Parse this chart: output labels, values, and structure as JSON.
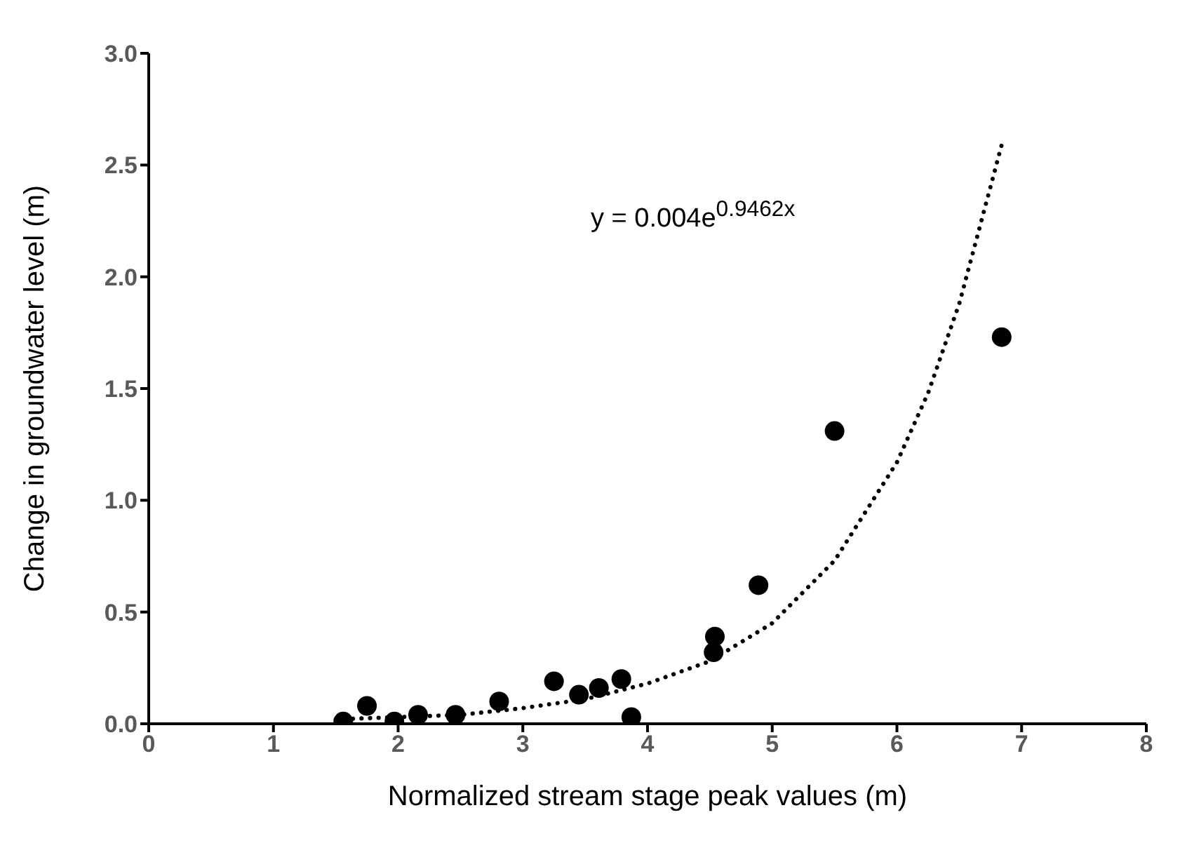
{
  "chart_data": {
    "type": "scatter",
    "xlabel": "Normalized stream stage peak values (m)",
    "ylabel": "Change in groundwater level (m)",
    "xlim": [
      0,
      8
    ],
    "xticks": [
      0,
      1,
      2,
      3,
      4,
      5,
      6,
      7,
      8
    ],
    "ylim": [
      0,
      3
    ],
    "yticks": [
      {
        "value": 0,
        "label": "0.0"
      },
      {
        "value": 0.5,
        "label": "0.5"
      },
      {
        "value": 1,
        "label": "1.0"
      },
      {
        "value": 1.5,
        "label": "1.5"
      },
      {
        "value": 2,
        "label": "2.0"
      },
      {
        "value": 2.5,
        "label": "2.5"
      },
      {
        "value": 3,
        "label": "3.0"
      }
    ],
    "annotations": [
      "y = 0.004e$^{0.9462x}$"
    ],
    "series": [
      {
        "color": "#000000",
        "marker": "circle",
        "x": [
          1.56,
          1.75,
          1.97,
          2.16,
          2.46,
          2.81,
          3.25,
          3.45,
          3.61,
          3.79,
          3.87,
          4.54,
          4.53,
          4.89,
          5.5,
          6.84
        ],
        "values": [
          0.01,
          0.08,
          0.01,
          0.04,
          0.04,
          0.1,
          0.19,
          0.13,
          0.16,
          0.2,
          0.03,
          0.39,
          0.32,
          0.62,
          1.31,
          1.73
        ]
      },
      {
        "type": "line",
        "color": "#000000",
        "marker": "none",
        "line_style": "dotted",
        "x": [
          1.5,
          2,
          2.5,
          3,
          3.5,
          4,
          4.5,
          5,
          5.5,
          6,
          6.25,
          6.5,
          6.84
        ],
        "values": [
          0.02,
          0.03,
          0.04,
          0.07,
          0.11,
          0.18,
          0.28,
          0.45,
          0.73,
          1.17,
          1.48,
          1.88,
          2.59
        ]
      }
    ]
  }
}
